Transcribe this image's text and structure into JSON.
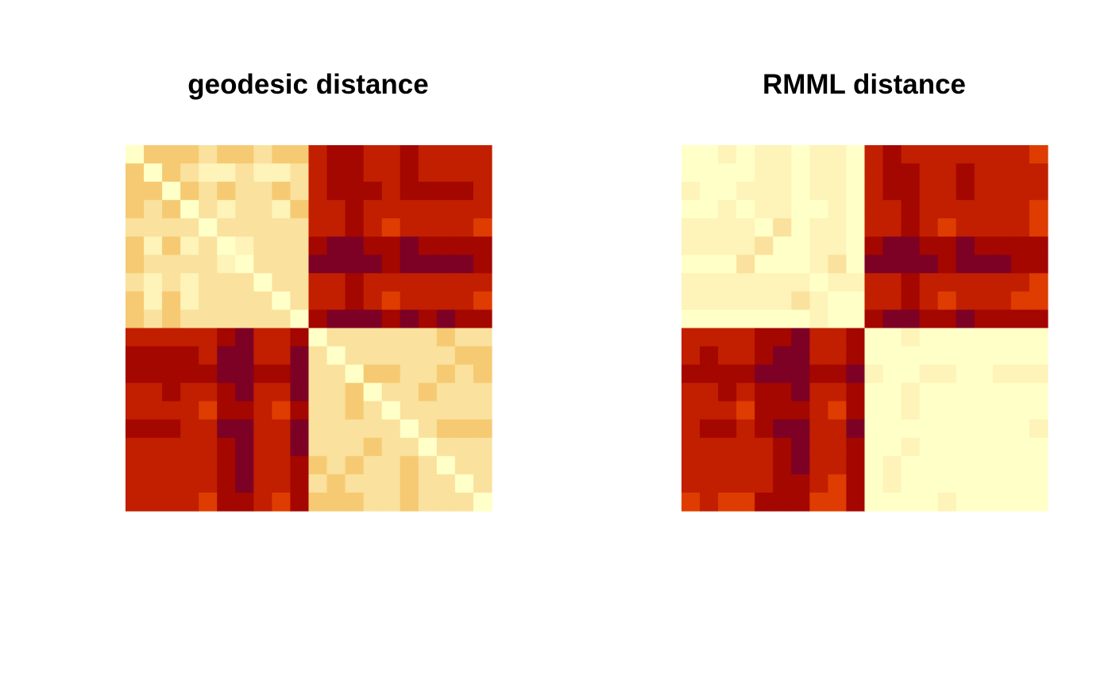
{
  "palette": {
    "description_levels": "1 = lightest (pale yellow) ... 7 = darkest (maroon)",
    "colors": [
      "#FFFFC8",
      "#FEF3B8",
      "#FAE19D",
      "#F6CA73",
      "#DE3C00",
      "#C11F00",
      "#A40600",
      "#7D0025"
    ]
  },
  "chart_data": [
    {
      "type": "heatmap",
      "title": "geodesic distance",
      "rows": 20,
      "cols": 20,
      "grid": false,
      "legend": "none",
      "values": [
        [
          0,
          3,
          3,
          3,
          2,
          3,
          3,
          2,
          3,
          3,
          5,
          6,
          6,
          5,
          5,
          6,
          5,
          5,
          5,
          5
        ],
        [
          3,
          0,
          3,
          2,
          1,
          1,
          2,
          1,
          1,
          2,
          5,
          6,
          6,
          5,
          5,
          6,
          5,
          5,
          5,
          5
        ],
        [
          3,
          3,
          0,
          3,
          2,
          3,
          2,
          2,
          3,
          2,
          5,
          6,
          6,
          6,
          5,
          6,
          6,
          6,
          6,
          5
        ],
        [
          3,
          2,
          3,
          0,
          2,
          1,
          2,
          2,
          1,
          3,
          5,
          5,
          6,
          5,
          5,
          5,
          5,
          5,
          5,
          5
        ],
        [
          2,
          2,
          2,
          2,
          0,
          2,
          2,
          2,
          2,
          2,
          5,
          5,
          6,
          5,
          4,
          5,
          5,
          5,
          5,
          4
        ],
        [
          3,
          1,
          3,
          1,
          2,
          0,
          1,
          2,
          2,
          2,
          6,
          7,
          7,
          6,
          6,
          7,
          6,
          6,
          6,
          6
        ],
        [
          3,
          2,
          2,
          2,
          2,
          1,
          0,
          2,
          2,
          2,
          7,
          7,
          7,
          7,
          6,
          7,
          7,
          7,
          7,
          6
        ],
        [
          2,
          1,
          2,
          1,
          2,
          2,
          2,
          0,
          2,
          2,
          5,
          5,
          6,
          5,
          5,
          5,
          5,
          5,
          5,
          5
        ],
        [
          3,
          1,
          3,
          1,
          2,
          2,
          2,
          2,
          0,
          2,
          5,
          5,
          6,
          5,
          4,
          5,
          5,
          5,
          5,
          4
        ],
        [
          3,
          2,
          3,
          2,
          2,
          2,
          2,
          2,
          2,
          0,
          6,
          7,
          7,
          7,
          6,
          7,
          6,
          7,
          6,
          6
        ],
        [
          5,
          5,
          5,
          5,
          5,
          6,
          7,
          5,
          5,
          6,
          0,
          2,
          2,
          2,
          2,
          2,
          2,
          3,
          2,
          2
        ],
        [
          6,
          6,
          6,
          6,
          5,
          7,
          7,
          5,
          5,
          7,
          2,
          0,
          2,
          2,
          2,
          2,
          2,
          2,
          3,
          3
        ],
        [
          6,
          6,
          6,
          6,
          6,
          7,
          7,
          6,
          6,
          7,
          2,
          2,
          0,
          3,
          3,
          2,
          2,
          3,
          2,
          3
        ],
        [
          5,
          5,
          6,
          5,
          5,
          6,
          7,
          5,
          5,
          7,
          2,
          2,
          3,
          0,
          2,
          2,
          3,
          2,
          2,
          2
        ],
        [
          5,
          5,
          5,
          5,
          4,
          6,
          6,
          5,
          4,
          6,
          2,
          2,
          3,
          2,
          0,
          2,
          2,
          2,
          2,
          2
        ],
        [
          6,
          6,
          6,
          5,
          5,
          7,
          7,
          5,
          5,
          7,
          2,
          2,
          2,
          2,
          2,
          0,
          2,
          3,
          3,
          3
        ],
        [
          5,
          5,
          5,
          5,
          5,
          6,
          7,
          5,
          5,
          7,
          2,
          2,
          2,
          3,
          2,
          2,
          0,
          2,
          2,
          2
        ],
        [
          5,
          5,
          5,
          5,
          5,
          6,
          7,
          5,
          5,
          6,
          3,
          2,
          3,
          2,
          2,
          3,
          2,
          0,
          2,
          2
        ],
        [
          5,
          5,
          5,
          5,
          5,
          6,
          7,
          5,
          5,
          6,
          2,
          3,
          2,
          2,
          2,
          3,
          2,
          2,
          0,
          2
        ],
        [
          5,
          5,
          5,
          5,
          4,
          6,
          6,
          5,
          4,
          6,
          3,
          3,
          3,
          2,
          2,
          3,
          2,
          2,
          2,
          0
        ]
      ]
    },
    {
      "type": "heatmap",
      "title": "RMML distance",
      "rows": 20,
      "cols": 20,
      "grid": false,
      "legend": "none",
      "values": [
        [
          0,
          0,
          1,
          0,
          1,
          1,
          0,
          1,
          1,
          0,
          5,
          6,
          5,
          5,
          5,
          5,
          5,
          5,
          5,
          4
        ],
        [
          0,
          0,
          0,
          0,
          1,
          1,
          0,
          1,
          1,
          0,
          5,
          6,
          6,
          5,
          5,
          6,
          5,
          5,
          5,
          5
        ],
        [
          1,
          0,
          0,
          1,
          1,
          1,
          0,
          1,
          1,
          0,
          5,
          6,
          6,
          5,
          5,
          6,
          5,
          5,
          5,
          5
        ],
        [
          0,
          0,
          1,
          0,
          1,
          1,
          0,
          0,
          1,
          0,
          5,
          5,
          6,
          5,
          5,
          5,
          5,
          5,
          5,
          4
        ],
        [
          1,
          1,
          1,
          1,
          0,
          2,
          0,
          1,
          1,
          0,
          5,
          5,
          6,
          5,
          4,
          5,
          5,
          5,
          5,
          4
        ],
        [
          1,
          1,
          1,
          1,
          2,
          0,
          0,
          1,
          1,
          0,
          6,
          7,
          7,
          6,
          6,
          7,
          6,
          6,
          6,
          6
        ],
        [
          0,
          0,
          0,
          2,
          0,
          0,
          0,
          1,
          2,
          0,
          7,
          7,
          7,
          7,
          6,
          7,
          7,
          7,
          6,
          6
        ],
        [
          1,
          1,
          1,
          1,
          1,
          1,
          1,
          0,
          1,
          1,
          5,
          5,
          6,
          5,
          5,
          5,
          5,
          5,
          5,
          4
        ],
        [
          1,
          1,
          1,
          1,
          1,
          1,
          2,
          1,
          0,
          0,
          5,
          5,
          6,
          5,
          4,
          5,
          5,
          5,
          4,
          4
        ],
        [
          0,
          0,
          0,
          0,
          0,
          0,
          0,
          1,
          0,
          0,
          6,
          7,
          7,
          6,
          6,
          7,
          6,
          6,
          6,
          6
        ],
        [
          5,
          5,
          5,
          5,
          6,
          6,
          7,
          5,
          5,
          6,
          0,
          0,
          1,
          0,
          0,
          0,
          0,
          0,
          0,
          0
        ],
        [
          5,
          6,
          5,
          5,
          6,
          7,
          7,
          5,
          5,
          6,
          0,
          0,
          0,
          0,
          0,
          0,
          0,
          0,
          0,
          0
        ],
        [
          6,
          6,
          6,
          6,
          7,
          7,
          7,
          6,
          6,
          7,
          1,
          0,
          0,
          1,
          1,
          0,
          0,
          1,
          1,
          1
        ],
        [
          5,
          5,
          6,
          5,
          6,
          6,
          7,
          5,
          5,
          6,
          0,
          0,
          1,
          0,
          0,
          0,
          0,
          0,
          0,
          0
        ],
        [
          5,
          5,
          5,
          4,
          6,
          6,
          6,
          5,
          4,
          6,
          0,
          0,
          1,
          0,
          0,
          0,
          0,
          0,
          0,
          0
        ],
        [
          5,
          6,
          6,
          5,
          6,
          7,
          7,
          5,
          5,
          7,
          0,
          0,
          0,
          0,
          0,
          0,
          0,
          0,
          0,
          1
        ],
        [
          5,
          5,
          5,
          5,
          5,
          6,
          7,
          5,
          5,
          6,
          0,
          0,
          1,
          0,
          0,
          0,
          0,
          0,
          0,
          0
        ],
        [
          5,
          5,
          5,
          5,
          5,
          6,
          7,
          5,
          5,
          6,
          0,
          1,
          0,
          0,
          0,
          0,
          0,
          0,
          0,
          0
        ],
        [
          5,
          5,
          5,
          5,
          5,
          6,
          6,
          5,
          4,
          6,
          0,
          1,
          0,
          0,
          0,
          0,
          0,
          0,
          0,
          0
        ],
        [
          4,
          5,
          4,
          4,
          6,
          6,
          6,
          4,
          4,
          6,
          0,
          0,
          0,
          0,
          1,
          0,
          0,
          0,
          0,
          0
        ]
      ]
    }
  ]
}
